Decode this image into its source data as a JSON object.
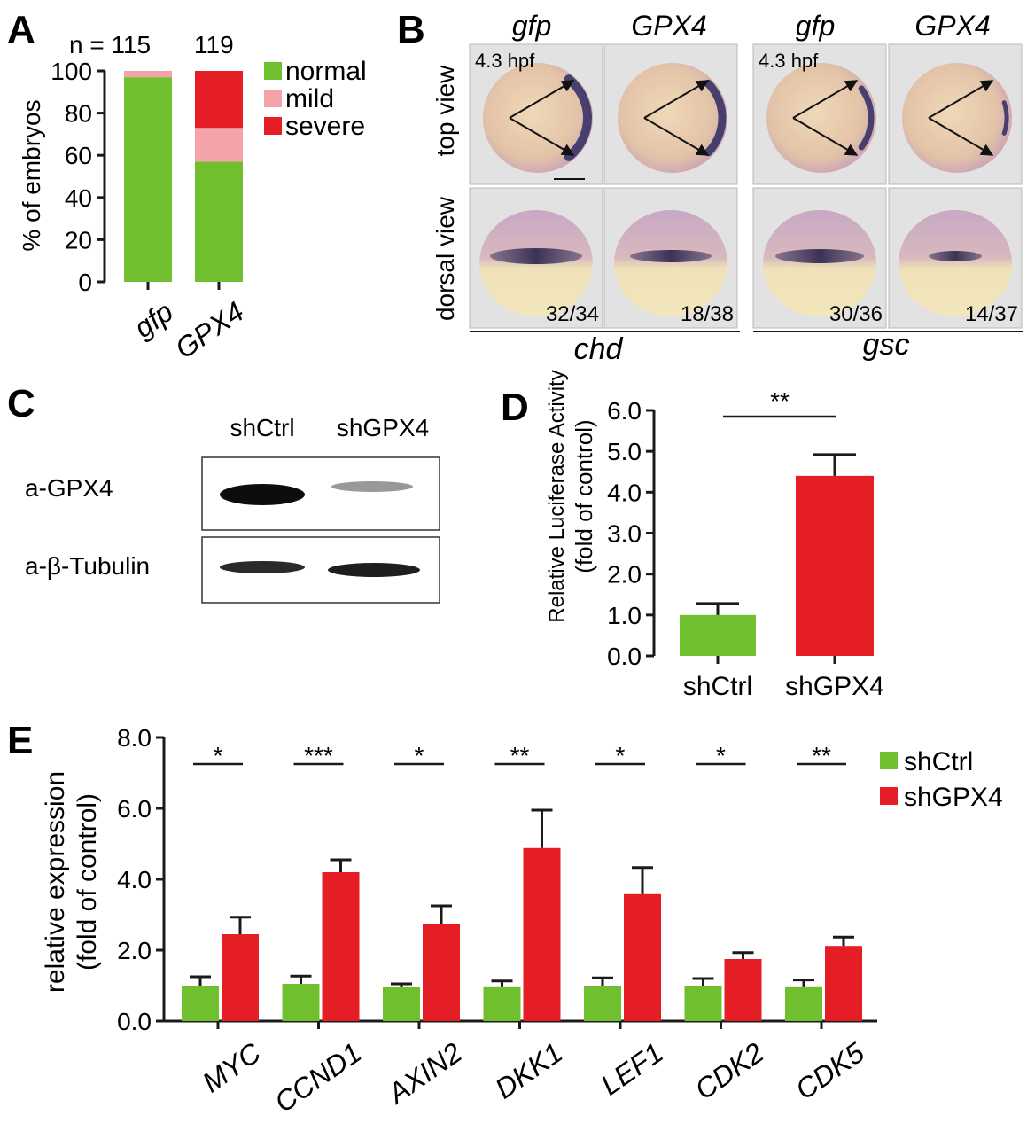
{
  "colors": {
    "normal": "#6fbf2f",
    "mild": "#f4a3a8",
    "severe": "#e51d24",
    "shCtrl": "#6fbf2f",
    "shGPX4": "#e51d24",
    "axis": "#1a1a1a"
  },
  "panels": {
    "A": {
      "letter": "A",
      "n_prefix": "n = 115",
      "n_second": "119",
      "chart_data": {
        "type": "bar",
        "stacked": true,
        "categories": [
          "gfp",
          "GPX4"
        ],
        "series": [
          {
            "name": "normal",
            "values": [
              97,
              57
            ]
          },
          {
            "name": "mild",
            "values": [
              3,
              16
            ]
          },
          {
            "name": "severe",
            "values": [
              0,
              27
            ]
          }
        ],
        "ylabel": "% of embryos",
        "ylim": [
          0,
          100
        ],
        "yticks": [
          "0",
          "20",
          "40",
          "60",
          "80",
          "100"
        ],
        "legend": "right"
      }
    },
    "B": {
      "letter": "B",
      "col_labels": [
        "gfp",
        "GPX4",
        "gfp",
        "GPX4"
      ],
      "row_labels": [
        "top view",
        "dorsal view"
      ],
      "stage": [
        "4.3 hpf",
        "4.3 hpf"
      ],
      "counts": [
        "32/34",
        "18/38",
        "30/36",
        "14/37"
      ],
      "genes": [
        "chd",
        "gsc"
      ]
    },
    "C": {
      "letter": "C",
      "lanes": [
        "shCtrl",
        "shGPX4"
      ],
      "rows": [
        "a-GPX4",
        "a-β-Tubulin"
      ]
    },
    "D": {
      "letter": "D",
      "chart_data": {
        "type": "bar",
        "categories": [
          "shCtrl",
          "shGPX4"
        ],
        "values": [
          1.0,
          4.4
        ],
        "errors": [
          0.28,
          0.52
        ],
        "ylabel_line1": "Relative Luciferase Activity",
        "ylabel_line2": "(fold of control)",
        "ylim": [
          0,
          6
        ],
        "yticks": [
          "0.0",
          "1.0",
          "2.0",
          "3.0",
          "4.0",
          "5.0",
          "6.0"
        ],
        "significance": "**"
      }
    },
    "E": {
      "letter": "E",
      "chart_data": {
        "type": "bar",
        "categories": [
          "MYC",
          "CCND1",
          "AXIN2",
          "DKK1",
          "LEF1",
          "CDK2",
          "CDK5"
        ],
        "series": [
          {
            "name": "shCtrl",
            "values": [
              1.0,
              1.05,
              0.95,
              0.98,
              1.0,
              1.0,
              0.98
            ],
            "errors": [
              0.25,
              0.22,
              0.1,
              0.15,
              0.22,
              0.2,
              0.18
            ]
          },
          {
            "name": "shGPX4",
            "values": [
              2.45,
              4.2,
              2.75,
              4.88,
              3.58,
              1.75,
              2.12
            ],
            "errors": [
              0.48,
              0.35,
              0.5,
              1.07,
              0.75,
              0.18,
              0.25
            ]
          }
        ],
        "ylabel_line1": "relative expression",
        "ylabel_line2": "(fold of control)",
        "ylim": [
          0,
          8
        ],
        "yticks": [
          "0.0",
          "2.0",
          "4.0",
          "6.0",
          "8.0"
        ],
        "significance": [
          "*",
          "***",
          "*",
          "**",
          "*",
          "*",
          "**"
        ],
        "legend": "top-right"
      }
    }
  }
}
